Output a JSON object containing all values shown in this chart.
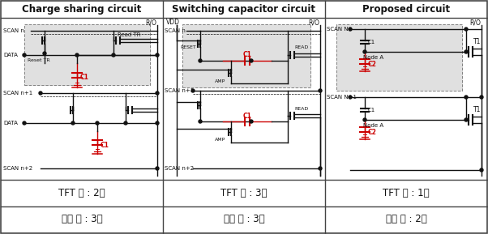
{
  "title1": "Charge sharing circuit",
  "title2": "Switching capacitor circuit",
  "title3": "Proposed circuit",
  "tft_row": [
    "TFT 수 : 2개",
    "TFT 수 : 3개",
    "TFT 수 : 1개"
  ],
  "wiring_row": [
    "배선 수 : 3개",
    "배선 수 : 3개",
    "배선 수 : 2개"
  ],
  "bg_color": "#ffffff",
  "border_color": "#444444",
  "gray_bg": "#e0e0e0",
  "red_color": "#cc0000",
  "black": "#111111"
}
